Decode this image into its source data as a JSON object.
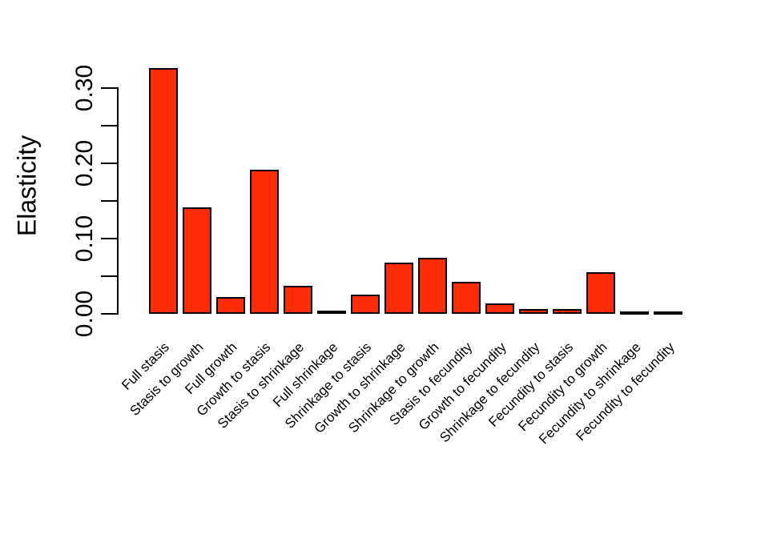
{
  "chart_data": {
    "type": "bar",
    "title": "",
    "xlabel": "",
    "ylabel": "Elasticity",
    "categories": [
      "Full stasis",
      "Stasis to growth",
      "Full growth",
      "Growth to stasis",
      "Stasis to shrinkage",
      "Full shrinkage",
      "Shrinkage to stasis",
      "Growth to shrinkage",
      "Shrinkage to growth",
      "Stasis to fecundity",
      "Growth to fecundity",
      "Shrinkage to fecundity",
      "Fecundity to stasis",
      "Fecundity to growth",
      "Fecundity to shrinkage",
      "Fecundity to fecundity"
    ],
    "values": [
      0.327,
      0.142,
      0.022,
      0.192,
      0.037,
      0.004,
      0.026,
      0.068,
      0.074,
      0.043,
      0.014,
      0.006,
      0.006,
      0.055,
      0.001,
      0.001
    ],
    "ylim": [
      0,
      0.335
    ],
    "yticks": {
      "positions": [
        0.0,
        0.05,
        0.1,
        0.15,
        0.2,
        0.25,
        0.3
      ],
      "labels": [
        "0.00",
        "",
        "0.10",
        "",
        "0.20",
        "",
        "0.30"
      ]
    },
    "grid": false,
    "legend": "none",
    "x_tick_label_rotation_deg": 45,
    "y_tick_label_rotation_deg": 90,
    "colors": {
      "bar_fill": "#FF2B06",
      "bar_border": "#000000",
      "axis": "#000000",
      "text": "#000000",
      "background": "#FFFFFF"
    }
  }
}
